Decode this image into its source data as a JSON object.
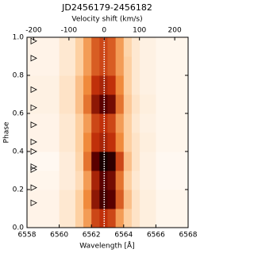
{
  "chart_data": {
    "type": "heatmap",
    "title": "JD2456179-2456182",
    "x2label": "Velocity shift (km/s)",
    "xlabel": "Wavelength [Å]",
    "ylabel": "Phase",
    "xlim": [
      6558,
      6568
    ],
    "xticks": [
      6558,
      6560,
      6562,
      6564,
      6566,
      6568
    ],
    "x2lim": [
      -219,
      238
    ],
    "x2ticks": [
      -200,
      -100,
      0,
      100,
      200
    ],
    "ylim": [
      0,
      1
    ],
    "yticks": [
      {
        "value": 0,
        "label": "0.0"
      },
      0.2,
      0.4,
      0.6,
      0.8,
      {
        "value": 1,
        "label": "1.0"
      }
    ],
    "x_edges": [
      6558,
      6560,
      6561,
      6561.5,
      6562,
      6562.5,
      6563,
      6563.5,
      6564,
      6564.5,
      6565,
      6566,
      6568
    ],
    "y_edges": [
      0,
      0.1,
      0.2,
      0.3,
      0.4,
      0.5,
      0.6,
      0.7,
      0.8,
      0.9,
      1
    ],
    "z": [
      [
        0.05,
        0.1,
        0.2,
        0.35,
        0.55,
        0.6,
        0.55,
        0.35,
        0.2,
        0.12,
        0.07,
        0.04
      ],
      [
        0.05,
        0.1,
        0.2,
        0.4,
        0.7,
        0.85,
        0.8,
        0.5,
        0.25,
        0.12,
        0.07,
        0.04
      ],
      [
        0.04,
        0.08,
        0.15,
        0.35,
        0.65,
        0.8,
        0.75,
        0.45,
        0.2,
        0.1,
        0.06,
        0.03
      ],
      [
        0.03,
        0.08,
        0.18,
        0.45,
        0.8,
        0.95,
        0.9,
        0.55,
        0.25,
        0.12,
        0.06,
        0.03
      ],
      [
        0.05,
        0.1,
        0.2,
        0.4,
        0.6,
        0.65,
        0.6,
        0.4,
        0.2,
        0.12,
        0.07,
        0.04
      ],
      [
        0.05,
        0.1,
        0.2,
        0.35,
        0.55,
        0.6,
        0.55,
        0.35,
        0.2,
        0.1,
        0.06,
        0.04
      ],
      [
        0.06,
        0.12,
        0.25,
        0.45,
        0.7,
        0.8,
        0.75,
        0.45,
        0.22,
        0.12,
        0.07,
        0.04
      ],
      [
        0.06,
        0.12,
        0.25,
        0.4,
        0.6,
        0.65,
        0.6,
        0.4,
        0.2,
        0.1,
        0.06,
        0.04
      ],
      [
        0.05,
        0.1,
        0.2,
        0.35,
        0.5,
        0.55,
        0.5,
        0.35,
        0.2,
        0.1,
        0.06,
        0.04
      ],
      [
        0.05,
        0.1,
        0.2,
        0.35,
        0.5,
        0.55,
        0.5,
        0.35,
        0.18,
        0.1,
        0.06,
        0.04
      ]
    ],
    "colormap": [
      "#ffffff",
      "#fdd0a2",
      "#f08a3c",
      "#c0300a",
      "#5a0000",
      "#000000"
    ],
    "zero_velocity_line": 0,
    "phase_markers": [
      0.98,
      0.89,
      0.725,
      0.63,
      0.54,
      0.45,
      0.4,
      0.32,
      0.305,
      0.21,
      0.13
    ]
  }
}
